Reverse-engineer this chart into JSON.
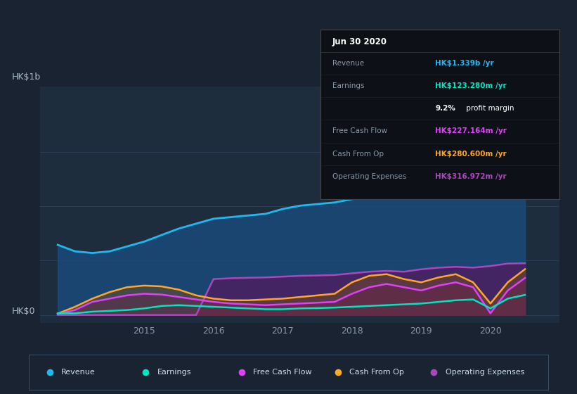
{
  "bg_color": "#1a2332",
  "plot_bg_color": "#1e2d3d",
  "title_label": "HK$1b",
  "y_label_bottom": "HK$0",
  "x_ticks": [
    2015,
    2016,
    2017,
    2018,
    2019,
    2020
  ],
  "x_range": [
    2013.5,
    2021.0
  ],
  "y_range": [
    -50,
    1400
  ],
  "series": {
    "revenue": {
      "color": "#1fb8f0",
      "fill_color": "#1a4a7a",
      "label": "Revenue",
      "x": [
        2013.75,
        2014.0,
        2014.25,
        2014.5,
        2014.75,
        2015.0,
        2015.25,
        2015.5,
        2015.75,
        2016.0,
        2016.25,
        2016.5,
        2016.75,
        2017.0,
        2017.25,
        2017.5,
        2017.75,
        2018.0,
        2018.25,
        2018.5,
        2018.75,
        2019.0,
        2019.25,
        2019.5,
        2019.75,
        2020.0,
        2020.25,
        2020.5
      ],
      "y": [
        430,
        390,
        380,
        390,
        420,
        450,
        490,
        530,
        560,
        590,
        600,
        610,
        620,
        650,
        670,
        680,
        690,
        710,
        730,
        750,
        760,
        800,
        850,
        900,
        950,
        1050,
        1200,
        1339
      ]
    },
    "earnings": {
      "color": "#00e5c0",
      "label": "Earnings",
      "x": [
        2013.75,
        2014.0,
        2014.25,
        2014.5,
        2014.75,
        2015.0,
        2015.25,
        2015.5,
        2015.75,
        2016.0,
        2016.25,
        2016.5,
        2016.75,
        2017.0,
        2017.25,
        2017.5,
        2017.75,
        2018.0,
        2018.25,
        2018.5,
        2018.75,
        2019.0,
        2019.25,
        2019.5,
        2019.75,
        2020.0,
        2020.25,
        2020.5
      ],
      "y": [
        10,
        10,
        20,
        25,
        30,
        40,
        55,
        60,
        55,
        50,
        45,
        40,
        35,
        35,
        40,
        42,
        45,
        50,
        55,
        60,
        65,
        70,
        80,
        90,
        95,
        40,
        100,
        123
      ]
    },
    "free_cash_flow": {
      "color": "#e040fb",
      "label": "Free Cash Flow",
      "x": [
        2013.75,
        2014.0,
        2014.25,
        2014.5,
        2014.75,
        2015.0,
        2015.25,
        2015.5,
        2015.75,
        2016.0,
        2016.25,
        2016.5,
        2016.75,
        2017.0,
        2017.25,
        2017.5,
        2017.75,
        2018.0,
        2018.25,
        2018.5,
        2018.75,
        2019.0,
        2019.25,
        2019.5,
        2019.75,
        2020.0,
        2020.25,
        2020.5
      ],
      "y": [
        5,
        30,
        80,
        100,
        120,
        130,
        125,
        110,
        95,
        80,
        70,
        65,
        60,
        65,
        70,
        75,
        80,
        130,
        170,
        190,
        170,
        150,
        180,
        200,
        170,
        10,
        150,
        227
      ]
    },
    "cash_from_op": {
      "color": "#ffa726",
      "label": "Cash From Op",
      "x": [
        2013.75,
        2014.0,
        2014.25,
        2014.5,
        2014.75,
        2015.0,
        2015.25,
        2015.5,
        2015.75,
        2016.0,
        2016.25,
        2016.5,
        2016.75,
        2017.0,
        2017.25,
        2017.5,
        2017.75,
        2018.0,
        2018.25,
        2018.5,
        2018.75,
        2019.0,
        2019.25,
        2019.5,
        2019.75,
        2020.0,
        2020.25,
        2020.5
      ],
      "y": [
        8,
        50,
        100,
        140,
        170,
        180,
        175,
        155,
        120,
        100,
        90,
        90,
        95,
        100,
        110,
        120,
        130,
        200,
        240,
        250,
        220,
        200,
        230,
        250,
        200,
        70,
        200,
        281
      ]
    },
    "operating_expenses": {
      "color": "#ab47bc",
      "label": "Operating Expenses",
      "x": [
        2013.75,
        2014.0,
        2014.25,
        2014.5,
        2014.75,
        2015.0,
        2015.25,
        2015.5,
        2015.75,
        2016.0,
        2016.25,
        2016.5,
        2016.75,
        2017.0,
        2017.25,
        2017.5,
        2017.75,
        2018.0,
        2018.25,
        2018.5,
        2018.75,
        2019.0,
        2019.25,
        2019.5,
        2019.75,
        2020.0,
        2020.25,
        2020.5
      ],
      "y": [
        0,
        0,
        0,
        0,
        0,
        0,
        0,
        0,
        0,
        220,
        225,
        228,
        230,
        235,
        240,
        242,
        245,
        255,
        265,
        270,
        265,
        280,
        290,
        295,
        290,
        300,
        315,
        317
      ]
    }
  },
  "tooltip": {
    "date": "Jun 30 2020",
    "bg": "#0d1117",
    "rows": [
      {
        "label": "Revenue",
        "value": "HK$1.339b /yr",
        "value_color": "#1fb8f0"
      },
      {
        "label": "Earnings",
        "value": "HK$123.280m /yr",
        "value_color": "#00e5c0"
      },
      {
        "label": "",
        "value": "9.2% profit margin",
        "value_color": "#ffffff",
        "bold_part": "9.2%"
      },
      {
        "label": "Free Cash Flow",
        "value": "HK$227.164m /yr",
        "value_color": "#e040fb"
      },
      {
        "label": "Cash From Op",
        "value": "HK$280.600m /yr",
        "value_color": "#ffa726"
      },
      {
        "label": "Operating Expenses",
        "value": "HK$316.972m /yr",
        "value_color": "#ab47bc"
      }
    ]
  },
  "legend": [
    {
      "label": "Revenue",
      "color": "#1fb8f0"
    },
    {
      "label": "Earnings",
      "color": "#00e5c0"
    },
    {
      "label": "Free Cash Flow",
      "color": "#e040fb"
    },
    {
      "label": "Cash From Op",
      "color": "#ffa726"
    },
    {
      "label": "Operating Expenses",
      "color": "#ab47bc"
    }
  ]
}
